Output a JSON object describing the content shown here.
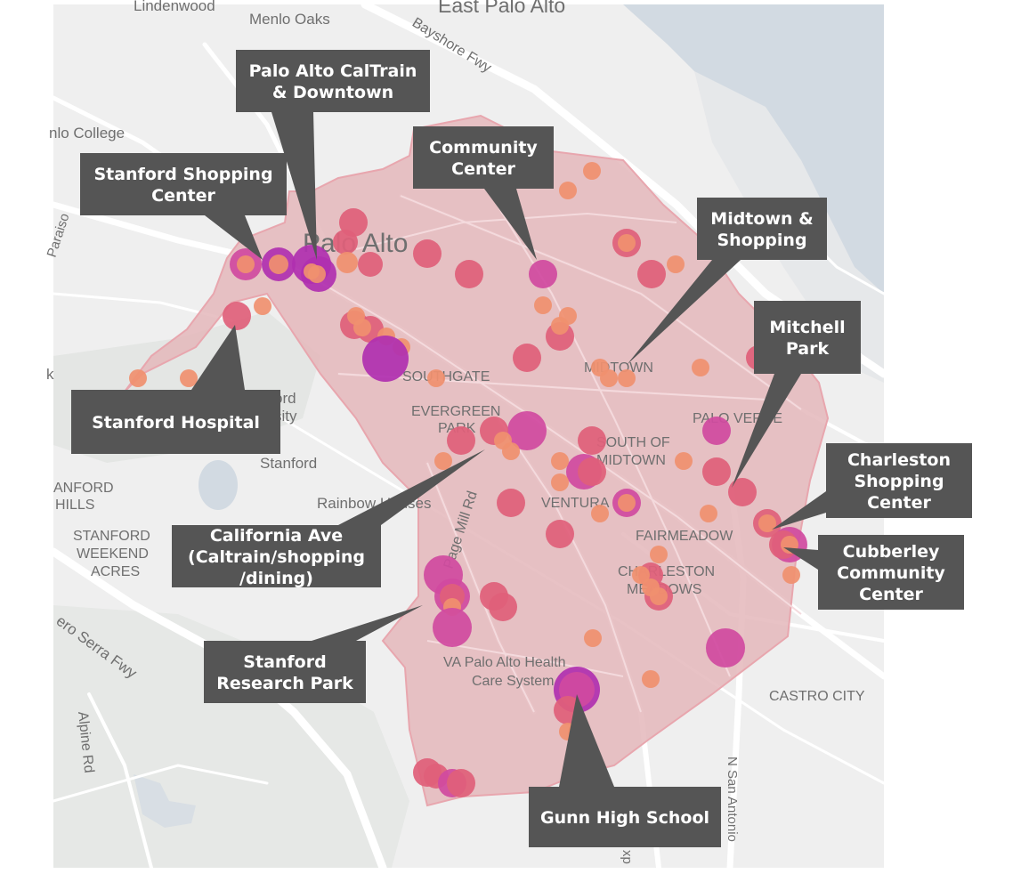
{
  "colors": {
    "land": "#efefef",
    "water": "#d2dae2",
    "park": "#e2e6e2",
    "road": "#ffffff",
    "region_fill": "#e4b7bb",
    "region_stroke": "#e8a6ae",
    "label": "#6f6f6f",
    "callout_bg": "#555555",
    "callout_text": "#ffffff",
    "point_low": "#f0906f",
    "point_mid": "#e0607a",
    "point_high": "#d04aa0",
    "point_top": "#b030b0"
  },
  "map_labels": [
    {
      "text": "Lindenwood"
    },
    {
      "text": "Menlo Oaks"
    },
    {
      "text": "East Palo Alto"
    },
    {
      "text": "Bayshore Fwy"
    },
    {
      "text": "nlo College"
    },
    {
      "text": "Paraiso"
    },
    {
      "text": "Palo Alto"
    },
    {
      "text": "SOUTHGATE"
    },
    {
      "text": "EVERGREEN"
    },
    {
      "text": "PARK"
    },
    {
      "text": "MIDTOWN"
    },
    {
      "text": "PALO VERDE"
    },
    {
      "text": "SOUTH OF"
    },
    {
      "text": "MIDTOWN"
    },
    {
      "text": "VENTURA"
    },
    {
      "text": "FAIRMEADOW"
    },
    {
      "text": "CHARLESTON"
    },
    {
      "text": "MEADOWS"
    },
    {
      "text": "ord"
    },
    {
      "text": "sity"
    },
    {
      "text": "Stanford"
    },
    {
      "text": "k"
    },
    {
      "text": "ANFORD"
    },
    {
      "text": "HILLS"
    },
    {
      "text": "STANFORD"
    },
    {
      "text": "WEEKEND"
    },
    {
      "text": "ACRES"
    },
    {
      "text": "Rainbow Houses"
    },
    {
      "text": "Page Mill Rd"
    },
    {
      "text": "VA Palo Alto Health"
    },
    {
      "text": "Care System"
    },
    {
      "text": "CASTRO CITY"
    },
    {
      "text": "ero Serra Fwy"
    },
    {
      "text": "Alpine Rd"
    },
    {
      "text": "N San Antonio"
    },
    {
      "text": "xp"
    }
  ],
  "callouts": [
    {
      "lines": [
        "Palo Alto CalTrain",
        "& Downtown"
      ]
    },
    {
      "lines": [
        "Community",
        "Center"
      ]
    },
    {
      "lines": [
        "Stanford Shopping",
        "Center"
      ]
    },
    {
      "lines": [
        "Midtown &",
        "Shopping"
      ]
    },
    {
      "lines": [
        "Mitchell",
        "Park"
      ]
    },
    {
      "lines": [
        "Stanford Hospital"
      ]
    },
    {
      "lines": [
        "California Ave",
        "(Caltrain/shopping",
        "/dining)"
      ]
    },
    {
      "lines": [
        "Charleston",
        "Shopping",
        "Center"
      ]
    },
    {
      "lines": [
        "Cubberley",
        "Community",
        "Center"
      ]
    },
    {
      "lines": [
        "Stanford",
        "Research Park"
      ]
    },
    {
      "lines": [
        "Gunn High School"
      ]
    }
  ]
}
